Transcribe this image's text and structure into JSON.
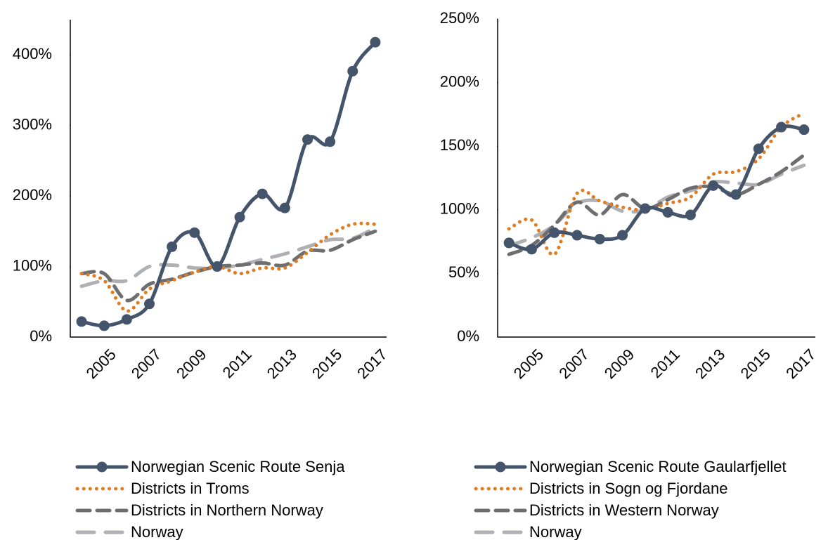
{
  "chart_data": [
    {
      "type": "line",
      "categories": [
        null,
        "2005",
        null,
        "2007",
        null,
        "2009",
        null,
        "2011",
        null,
        "2013",
        null,
        "2015",
        null,
        "2017"
      ],
      "ylim": [
        0,
        450
      ],
      "yticks": [
        {
          "value": 0,
          "label": "0%"
        },
        {
          "value": 100,
          "label": "100%"
        },
        {
          "value": 200,
          "label": "200%"
        },
        {
          "value": 300,
          "label": "300%"
        },
        {
          "value": 400,
          "label": "400%"
        }
      ],
      "series": [
        {
          "name": "Norwegian Scenic Route Senja",
          "color": "#44546a",
          "dash": "solid",
          "marker": "circle",
          "values": [
            22,
            16,
            25,
            47,
            128,
            148,
            100,
            170,
            203,
            183,
            280,
            277,
            377,
            418
          ]
        },
        {
          "name": "Districts in Troms",
          "color": "#e07b20",
          "dash": "dotted",
          "values": [
            90,
            80,
            37,
            68,
            80,
            92,
            100,
            90,
            98,
            98,
            120,
            145,
            160,
            160
          ]
        },
        {
          "name": "Districts in Northern Norway",
          "color": "#6e6e70",
          "dash": "dashed",
          "values": [
            90,
            90,
            52,
            75,
            82,
            92,
            100,
            102,
            105,
            102,
            122,
            123,
            138,
            150
          ]
        },
        {
          "name": "Norway",
          "color": "#aeb0b4",
          "dash": "longdash",
          "values": [
            72,
            80,
            80,
            100,
            102,
            98,
            98,
            102,
            110,
            118,
            128,
            138,
            140,
            155
          ]
        }
      ]
    },
    {
      "type": "line",
      "categories": [
        null,
        "2005",
        null,
        "2007",
        null,
        "2009",
        null,
        "2011",
        null,
        "2013",
        null,
        "2015",
        null,
        "2017"
      ],
      "ylim": [
        0,
        250
      ],
      "yticks": [
        {
          "value": 0,
          "label": "0%"
        },
        {
          "value": 50,
          "label": "50%"
        },
        {
          "value": 100,
          "label": "100%"
        },
        {
          "value": 150,
          "label": "150%"
        },
        {
          "value": 200,
          "label": "200%"
        },
        {
          "value": 250,
          "label": "250%"
        }
      ],
      "series": [
        {
          "name": "Norwegian Scenic Route Gaularfjellet",
          "color": "#44546a",
          "dash": "solid",
          "marker": "circle",
          "values": [
            74,
            69,
            82,
            80,
            77,
            80,
            101,
            98,
            96,
            119,
            112,
            148,
            165,
            163
          ]
        },
        {
          "name": "Districts in Sogn og Fjordane",
          "color": "#e07b20",
          "dash": "dotted",
          "values": [
            85,
            92,
            65,
            113,
            107,
            102,
            100,
            105,
            110,
            128,
            130,
            140,
            165,
            176
          ]
        },
        {
          "name": "Districts in Western Norway",
          "color": "#6e6e70",
          "dash": "dashed",
          "values": [
            65,
            72,
            88,
            106,
            96,
            112,
            101,
            108,
            117,
            118,
            112,
            120,
            130,
            143
          ]
        },
        {
          "name": "Norway",
          "color": "#aeb0b4",
          "dash": "longdash",
          "values": [
            72,
            78,
            88,
            105,
            107,
            99,
            100,
            110,
            115,
            122,
            121,
            120,
            128,
            135
          ]
        }
      ]
    }
  ]
}
